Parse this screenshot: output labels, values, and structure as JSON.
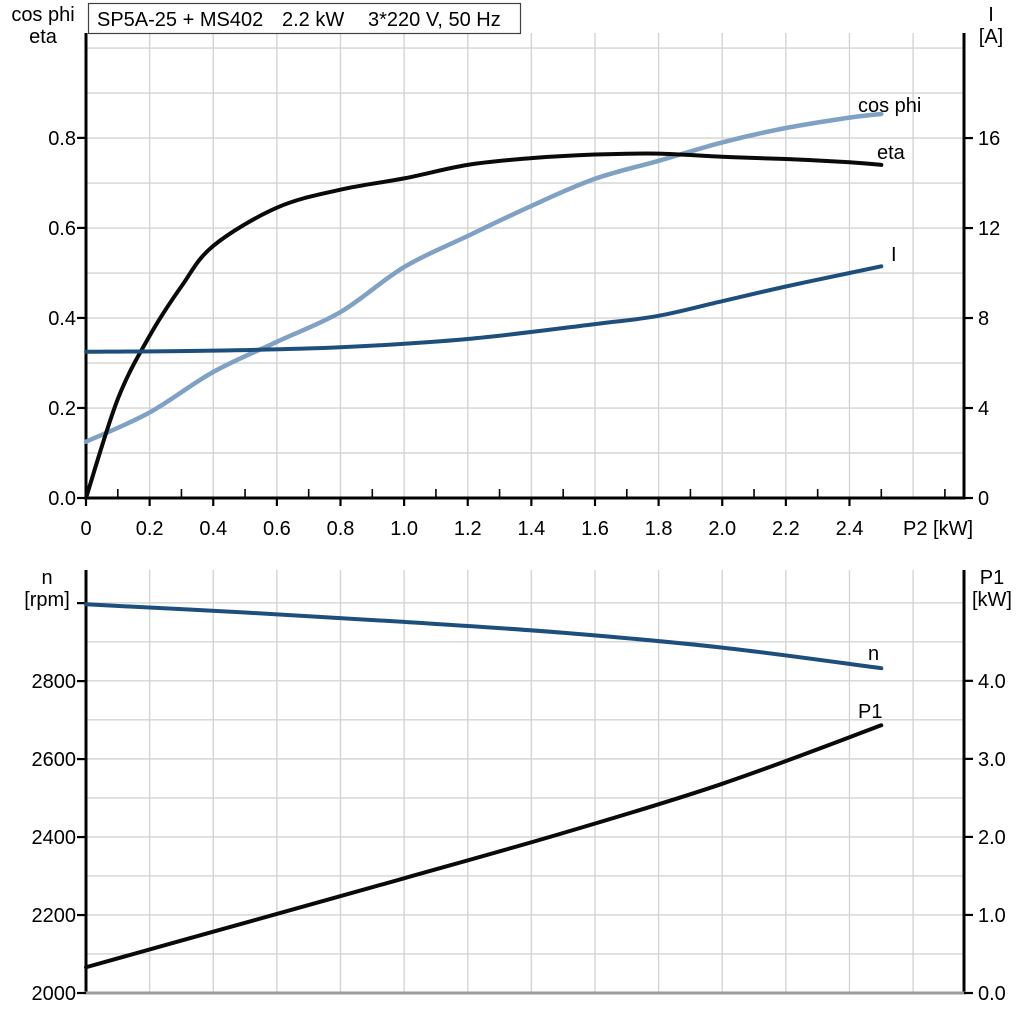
{
  "title": {
    "full": "SP5A-25 + MS402   2.2 kW   3*220 V, 50 Hz",
    "parts": [
      "SP5A-25 + MS402",
      "2.2 kW",
      "3*220 V, 50 Hz"
    ]
  },
  "colors": {
    "black_curve": "#0a0a0a",
    "light_blue_curve": "#7fa1c3",
    "dark_blue_curve": "#1d4f7c",
    "gridline": "#d4d4d4",
    "axis": "#000000",
    "bottom_axis_gray": "#9b9b9b",
    "background": "#ffffff"
  },
  "axis_titles": {
    "top_left": [
      "cos phi",
      "eta"
    ],
    "top_right": [
      "I",
      "[A]"
    ],
    "bottom_left": [
      "n",
      "[rpm]"
    ],
    "bottom_right": [
      "P1",
      "[kW]"
    ],
    "x": "P2 [kW]"
  },
  "chart_data": [
    {
      "id": "motor-electrical-curves",
      "type": "line",
      "title": "SP5A-25 + MS402  2.2 kW  3*220 V, 50 Hz",
      "xlabel": "P2 [kW]",
      "ylabel_left": "cos phi / eta",
      "ylabel_right": "I [A]",
      "xlim": [
        0,
        2.76
      ],
      "ylim_left": [
        0,
        1.033
      ],
      "ylim_right": [
        0,
        20.67
      ],
      "grid": true,
      "x_ticks": {
        "values": [
          0,
          0.2,
          0.4,
          0.6,
          0.8,
          1.0,
          1.2,
          1.4,
          1.6,
          1.8,
          2.0,
          2.2,
          2.4
        ],
        "labels": [
          "0",
          "0.2",
          "0.4",
          "0.6",
          "0.8",
          "1.0",
          "1.2",
          "1.4",
          "1.6",
          "1.8",
          "2.0",
          "2.2",
          "2.4"
        ]
      },
      "y_ticks_left": {
        "values": [
          0,
          0.2,
          0.4,
          0.6,
          0.8
        ],
        "labels": [
          "0.0",
          "0.2",
          "0.4",
          "0.6",
          "0.8"
        ]
      },
      "y_ticks_right": {
        "values": [
          0,
          4,
          8,
          12,
          16
        ],
        "labels": [
          "0",
          "4",
          "8",
          "12",
          "16"
        ]
      },
      "series": [
        {
          "name": "cos phi",
          "axis": "left",
          "color": "#7fa1c3",
          "x": [
            0,
            0.2,
            0.4,
            0.6,
            0.8,
            1.0,
            1.2,
            1.4,
            1.6,
            1.8,
            2.0,
            2.2,
            2.4,
            2.5
          ],
          "values": [
            0.125,
            0.19,
            0.28,
            0.347,
            0.413,
            0.513,
            0.582,
            0.649,
            0.709,
            0.749,
            0.79,
            0.822,
            0.845,
            0.853
          ]
        },
        {
          "name": "eta",
          "axis": "left",
          "color": "#0a0a0a",
          "x": [
            0,
            0.1,
            0.2,
            0.3,
            0.4,
            0.6,
            0.8,
            1.0,
            1.2,
            1.4,
            1.6,
            1.8,
            2.0,
            2.2,
            2.4,
            2.5
          ],
          "values": [
            0,
            0.22,
            0.36,
            0.47,
            0.56,
            0.645,
            0.685,
            0.71,
            0.74,
            0.755,
            0.763,
            0.765,
            0.758,
            0.753,
            0.746,
            0.74
          ]
        },
        {
          "name": "I",
          "axis": "right",
          "color": "#1d4f7c",
          "x": [
            0,
            0.4,
            0.8,
            1.2,
            1.6,
            1.8,
            2.0,
            2.2,
            2.4,
            2.5
          ],
          "values": [
            6.5,
            6.55,
            6.7,
            7.07,
            7.73,
            8.1,
            8.75,
            9.4,
            10.0,
            10.3
          ]
        }
      ]
    },
    {
      "id": "speed-and-input-power-curves",
      "type": "line",
      "title": "",
      "xlabel": "",
      "ylabel_left": "n [rpm]",
      "ylabel_right": "P1 [kW]",
      "xlim": [
        0,
        2.76
      ],
      "ylim_left": [
        2000,
        3085
      ],
      "ylim_right": [
        0,
        5.42
      ],
      "grid": true,
      "x_ticks": {
        "values": [],
        "labels": []
      },
      "y_ticks_left": {
        "values": [
          2000,
          2200,
          2400,
          2600,
          2800
        ],
        "labels": [
          "2000",
          "2200",
          "2400",
          "2600",
          "2800"
        ]
      },
      "y_ticks_left_unlabeled": [
        3000
      ],
      "y_ticks_right": {
        "values": [
          0,
          1,
          2,
          3,
          4
        ],
        "labels": [
          "0.0",
          "1.0",
          "2.0",
          "3.0",
          "4.0"
        ]
      },
      "series": [
        {
          "name": "n",
          "axis": "left",
          "color": "#1d4f7c",
          "x": [
            0,
            0.5,
            1.0,
            1.5,
            2.0,
            2.5
          ],
          "values": [
            2997,
            2976,
            2952,
            2924,
            2886,
            2833
          ]
        },
        {
          "name": "P1",
          "axis": "right",
          "color": "#0a0a0a",
          "x": [
            0,
            0.5,
            1.0,
            1.5,
            2.0,
            2.5
          ],
          "values": [
            0.33,
            0.9,
            1.47,
            2.05,
            2.68,
            3.43
          ]
        }
      ]
    }
  ]
}
